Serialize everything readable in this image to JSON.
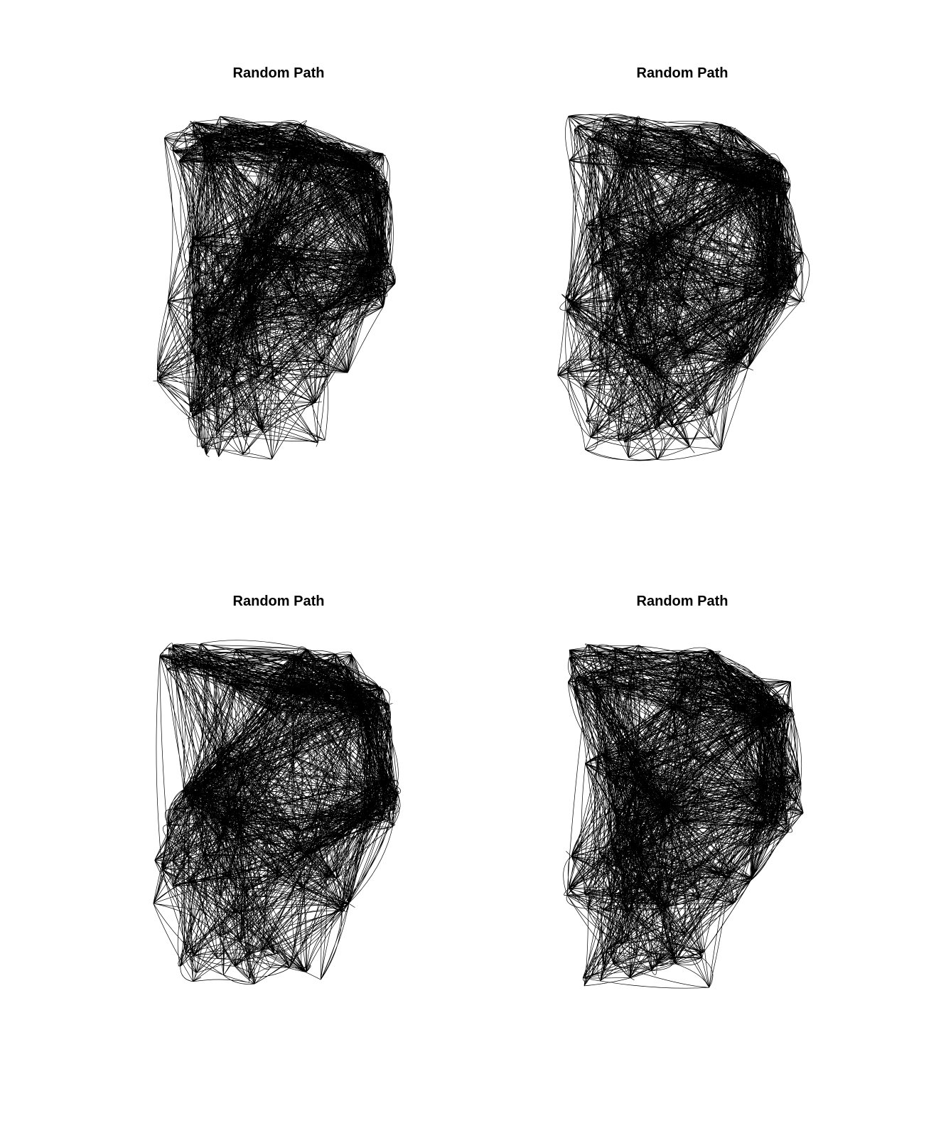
{
  "chart_data": [
    {
      "type": "line",
      "title": "Random Path",
      "xlabel": "",
      "ylabel": "",
      "axes_visible": false,
      "grid": false,
      "line_color": "#000000",
      "seed": 11,
      "steps": 2600,
      "xlim": [
        0,
        1
      ],
      "ylim": [
        0,
        1.55
      ]
    },
    {
      "type": "line",
      "title": "Random Path",
      "xlabel": "",
      "ylabel": "",
      "axes_visible": false,
      "grid": false,
      "line_color": "#000000",
      "seed": 23,
      "steps": 2600,
      "xlim": [
        0,
        1
      ],
      "ylim": [
        0,
        1.55
      ]
    },
    {
      "type": "line",
      "title": "Random Path",
      "xlabel": "",
      "ylabel": "",
      "axes_visible": false,
      "grid": false,
      "line_color": "#000000",
      "seed": 37,
      "steps": 2600,
      "xlim": [
        0,
        1
      ],
      "ylim": [
        0,
        1.55
      ]
    },
    {
      "type": "line",
      "title": "Random Path",
      "xlabel": "",
      "ylabel": "",
      "axes_visible": false,
      "grid": false,
      "line_color": "#000000",
      "seed": 51,
      "steps": 2600,
      "xlim": [
        0,
        1
      ],
      "ylim": [
        0,
        1.55
      ]
    }
  ]
}
